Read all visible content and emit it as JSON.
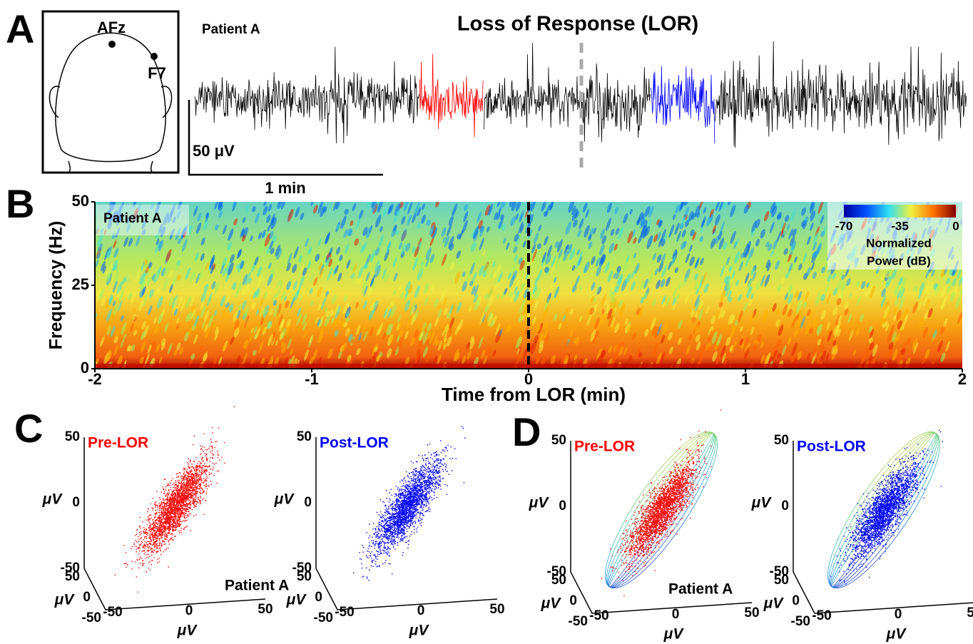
{
  "panel_a": {
    "letter": "A",
    "title": "Loss of Response (LOR)",
    "patient": "Patient A",
    "electrodes": [
      "AFz",
      "F7"
    ],
    "scale_y": "50 μV",
    "scale_x": "1 min"
  },
  "panel_b": {
    "letter": "B",
    "patient": "Patient A",
    "y_label": "Frequency (Hz)",
    "x_label": "Time from LOR (min)",
    "xlim": [
      -2,
      2
    ],
    "xticks": [
      -2,
      -1,
      0,
      1,
      2
    ],
    "ylim": [
      0,
      50
    ],
    "yticks": [
      0,
      25,
      50
    ],
    "lor_time": 0,
    "colorbar": {
      "lim": [
        -70,
        0
      ],
      "ticks": [
        -70,
        -35,
        0
      ],
      "label": [
        "Normalized",
        "Power (dB)"
      ]
    }
  },
  "panel_c": {
    "letter": "C",
    "patient": "Patient A",
    "unit": "μV",
    "ticks": [
      -50,
      0,
      50
    ],
    "plots": [
      {
        "label": "Pre-LOR",
        "color": "#ff0000"
      },
      {
        "label": "Post-LOR",
        "color": "#0000ff"
      }
    ]
  },
  "panel_d": {
    "letter": "D",
    "patient": "Patient A",
    "unit": "μV",
    "ticks": [
      -50,
      0,
      50
    ],
    "plots": [
      {
        "label": "Pre-LOR",
        "color": "#ff0000"
      },
      {
        "label": "Post-LOR",
        "color": "#0000ff"
      }
    ]
  }
}
